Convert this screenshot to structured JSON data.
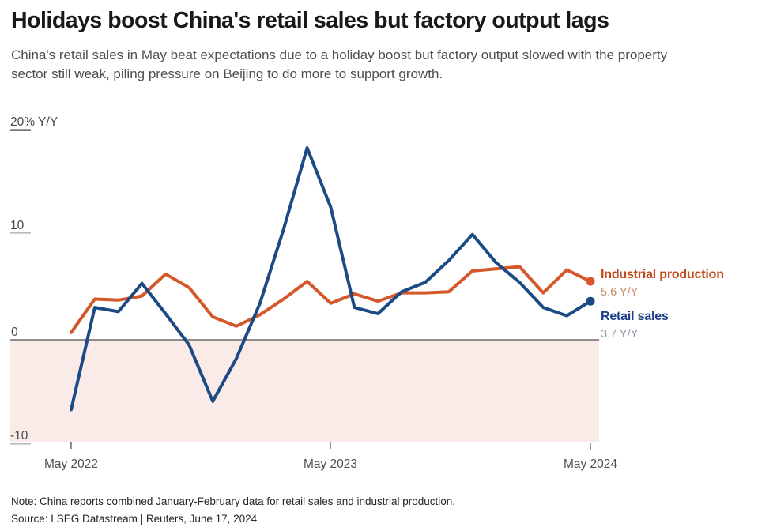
{
  "header": {
    "title": "Holidays boost China's retail sales but factory output lags",
    "subtitle": "China's retail sales in May beat expectations due to a holiday boost but factory output slowed with the property sector still weak, piling pressure on Beijing to do more to support growth."
  },
  "chart_data": {
    "type": "line",
    "unit": "% Y/Y",
    "x": [
      "May 2022",
      "Jun 2022",
      "Jul 2022",
      "Aug 2022",
      "Sep 2022",
      "Oct 2022",
      "Nov 2022",
      "Dec 2022",
      "Jan-Feb 2023",
      "Mar 2023",
      "Apr 2023",
      "May 2023",
      "Jun 2023",
      "Jul 2023",
      "Aug 2023",
      "Sep 2023",
      "Oct 2023",
      "Nov 2023",
      "Dec 2023",
      "Jan-Feb 2024",
      "Mar 2024",
      "Apr 2024",
      "May 2024"
    ],
    "series": [
      {
        "name": "Industrial production",
        "latest_label": "5.6 Y/Y",
        "color": "#d4582a",
        "values": [
          0.7,
          3.9,
          3.8,
          4.2,
          6.3,
          5.0,
          2.2,
          1.3,
          2.4,
          3.9,
          5.6,
          3.5,
          4.4,
          3.7,
          4.5,
          4.5,
          4.6,
          6.6,
          6.8,
          7.0,
          4.5,
          6.7,
          5.6
        ]
      },
      {
        "name": "Retail sales",
        "latest_label": "3.7 Y/Y",
        "color": "#1c4a85",
        "values": [
          -6.7,
          3.1,
          2.7,
          5.4,
          2.5,
          -0.5,
          -5.9,
          -1.8,
          3.5,
          10.6,
          18.4,
          12.7,
          3.1,
          2.5,
          4.6,
          5.5,
          7.6,
          10.1,
          7.4,
          5.5,
          3.1,
          2.3,
          3.7
        ]
      }
    ],
    "y_axis": {
      "labels": [
        "20% Y/Y",
        "10",
        "0",
        "-10"
      ],
      "ticks": [
        20,
        10,
        0,
        -10
      ],
      "range": [
        -10,
        20
      ]
    },
    "x_axis": {
      "tick_labels": [
        "May 2022",
        "May 2023",
        "May 2024"
      ],
      "tick_indices": [
        0,
        11,
        22
      ]
    },
    "grid": "off",
    "legend_position": "right of line ends",
    "colors": {
      "negative_area": "#faeae8",
      "zero_line": "#6b6b6b",
      "legend_orange_title": "#c1491c",
      "legend_orange_value": "#c98a66",
      "legend_blue_title": "#1d3f8a",
      "legend_blue_value": "#8d95a4"
    }
  },
  "footer": {
    "note": "Note: China reports combined January-February data for retail sales and industrial production.",
    "source": "Source: LSEG Datastream | Reuters, June 17, 2024"
  }
}
